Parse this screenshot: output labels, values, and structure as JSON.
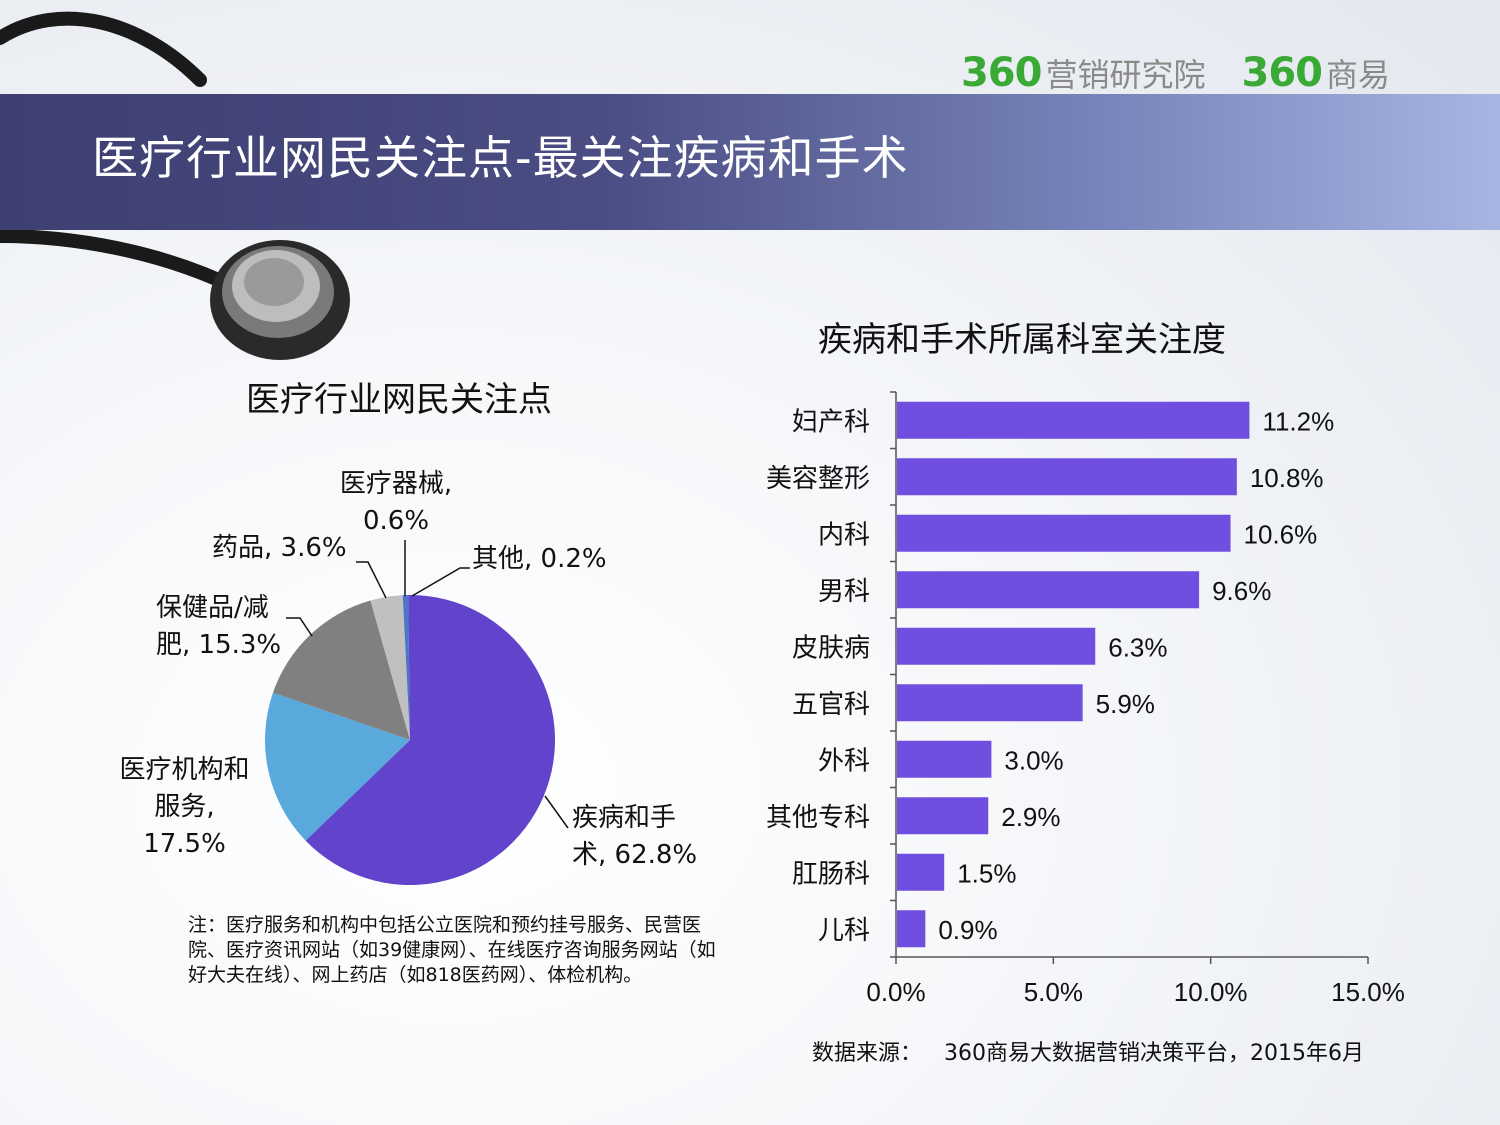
{
  "header": {
    "logo1_num": "360",
    "logo1_text": "营销研究院",
    "logo2_num": "360",
    "logo2_text": "商易",
    "brand_green": "#3aa935"
  },
  "banner": {
    "title": "医疗行业网民关注点-最关注疾病和手术"
  },
  "pie_chart_title": "医疗行业网民关注点",
  "bar_chart_title": "疾病和手术所属科室关注度",
  "pie_labels": {
    "disease_line1": "疾病和手",
    "disease_line2": "术, 62.8%",
    "institution_line1": "医疗机构和",
    "institution_line2": "服务,",
    "institution_line3": "17.5%",
    "health_line1": "保健品/减",
    "health_line2": "肥, 15.3%",
    "medicine": "药品, 3.6%",
    "device_line1": "医疗器械,",
    "device_line2": "0.6%",
    "other": "其他, 0.2%"
  },
  "note": "注：医疗服务和机构中包括公立医院和预约挂号服务、民营医院、医疗资讯网站（如39健康网）、在线医疗咨询服务网站（如好大夫在线）、网上药店（如818医药网）、体检机构。",
  "source": {
    "label": "数据来源：",
    "text": "360商易大数据营销决策平台，2015年6月"
  },
  "chart_data": [
    {
      "type": "pie",
      "title": "医疗行业网民关注点",
      "labels": [
        "疾病和手术",
        "医疗机构和服务",
        "保健品/减肥",
        "药品",
        "医疗器械",
        "其他"
      ],
      "values": [
        62.8,
        17.5,
        15.3,
        3.6,
        0.6,
        0.2
      ],
      "colors": [
        "#6244cc",
        "#5aa9dc",
        "#808080",
        "#c0c0c0",
        "#4a78c6",
        "#6244cc"
      ]
    },
    {
      "type": "bar",
      "orientation": "horizontal",
      "title": "疾病和手术所属科室关注度",
      "categories": [
        "妇产科",
        "美容整形",
        "内科",
        "男科",
        "皮肤病",
        "五官科",
        "外科",
        "其他专科",
        "肛肠科",
        "儿科"
      ],
      "values": [
        11.2,
        10.8,
        10.6,
        9.6,
        6.3,
        5.9,
        3.0,
        2.9,
        1.5,
        0.9
      ],
      "value_labels": [
        "11.2%",
        "10.8%",
        "10.6%",
        "9.6%",
        "6.3%",
        "5.9%",
        "3.0%",
        "2.9%",
        "1.5%",
        "0.9%"
      ],
      "xlim": [
        0,
        15
      ],
      "xticks": [
        "0.0%",
        "5.0%",
        "10.0%",
        "15.0%"
      ],
      "color": "#704fe0",
      "grid": false
    }
  ]
}
